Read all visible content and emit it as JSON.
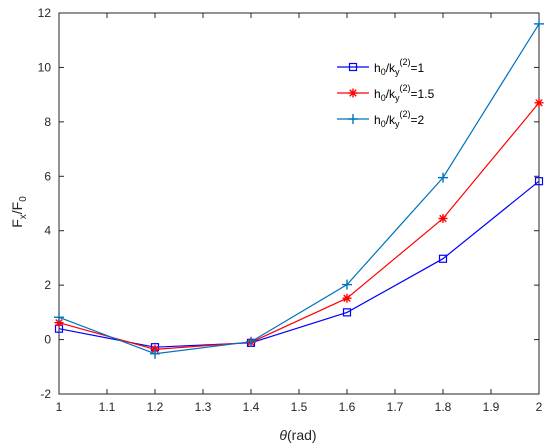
{
  "chart_data": {
    "type": "line",
    "title": "",
    "xlabel": {
      "main": "θ",
      "suffix": "(rad)"
    },
    "ylabel": {
      "base": "F",
      "sub1": "x",
      "sep": "/F",
      "sub2": "0"
    },
    "x": [
      1.0,
      1.2,
      1.4,
      1.6,
      1.8,
      2.0
    ],
    "xlim": [
      1.0,
      2.0
    ],
    "ylim": [
      -2,
      12
    ],
    "xticks": [
      "1",
      "1.1",
      "1.2",
      "1.3",
      "1.4",
      "1.5",
      "1.6",
      "1.7",
      "1.8",
      "1.9",
      "2"
    ],
    "yticks": [
      "-2",
      "0",
      "2",
      "4",
      "6",
      "8",
      "10",
      "12"
    ],
    "grid": false,
    "legend_position": "top-right",
    "series": [
      {
        "name": "h0/ky(2)=1",
        "label": {
          "a": "h",
          "a_sub": "0",
          "b": "/k",
          "b_sub": "y",
          "b_sup": "(2)",
          "c": "=1"
        },
        "values": [
          0.4,
          -0.28,
          -0.12,
          1.0,
          2.97,
          5.82
        ],
        "color": "#0000ff",
        "marker": "square"
      },
      {
        "name": "h0/ky(2)=1.5",
        "label": {
          "a": "h",
          "a_sub": "0",
          "b": "/k",
          "b_sub": "y",
          "b_sup": "(2)",
          "c": "=1.5"
        },
        "values": [
          0.62,
          -0.36,
          -0.1,
          1.52,
          4.45,
          8.7
        ],
        "color": "#ff0000",
        "marker": "asterisk"
      },
      {
        "name": "h0/ky(2)=2",
        "label": {
          "a": "h",
          "a_sub": "0",
          "b": "/k",
          "b_sub": "y",
          "b_sup": "(2)",
          "c": "=2"
        },
        "values": [
          0.82,
          -0.52,
          -0.08,
          2.02,
          5.95,
          11.6
        ],
        "color": "#0072bd",
        "marker": "plus"
      }
    ]
  }
}
